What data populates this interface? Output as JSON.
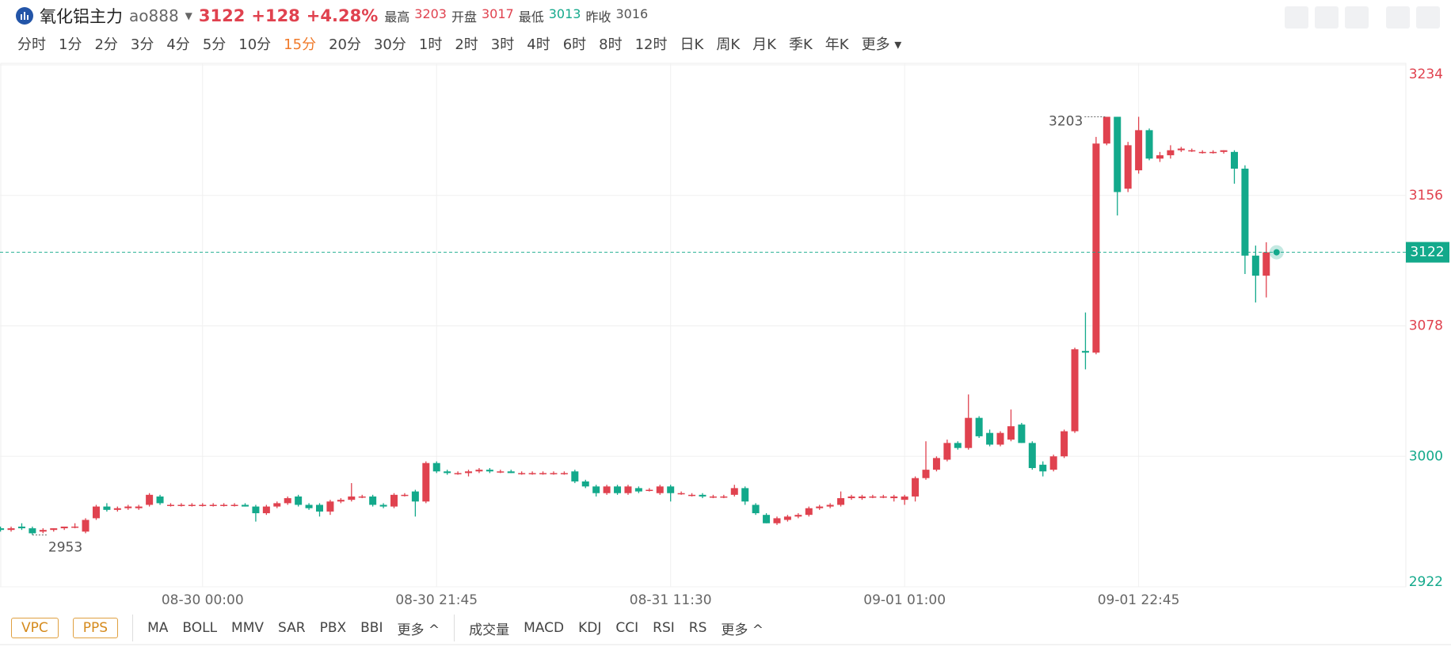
{
  "header": {
    "title": "氧化铝主力",
    "symbol": "ao888",
    "price": "3122",
    "change": "+128",
    "change_pct": "+4.28%",
    "stats": [
      {
        "label": "最高",
        "value": "3203",
        "color": "#e0424f"
      },
      {
        "label": "开盘",
        "value": "3017",
        "color": "#e0424f"
      },
      {
        "label": "最低",
        "value": "3013",
        "color": "#13a98b"
      },
      {
        "label": "昨收",
        "value": "3016",
        "color": "#555"
      }
    ]
  },
  "periods": [
    "分时",
    "1分",
    "2分",
    "3分",
    "4分",
    "5分",
    "10分",
    "15分",
    "20分",
    "30分",
    "1时",
    "2时",
    "3时",
    "4时",
    "6时",
    "8时",
    "12时",
    "日K",
    "周K",
    "月K",
    "季K",
    "年K",
    "更多"
  ],
  "active_period_index": 7,
  "indicators": {
    "main_boxes": [
      "VPC",
      "PPS"
    ],
    "main": [
      "MA",
      "BOLL",
      "MMV",
      "SAR",
      "PBX",
      "BBI"
    ],
    "main_more": "更多",
    "sub": [
      "成交量",
      "MACD",
      "KDJ",
      "CCI",
      "RSI",
      "RS"
    ],
    "sub_more": "更多"
  },
  "chart_data": {
    "type": "candlestick",
    "up_color": "#e0424f",
    "down_color": "#13a98b",
    "grid": true,
    "ylim": [
      2922,
      3234
    ],
    "yticks": [
      2922,
      3000,
      3078,
      3156,
      3234
    ],
    "prev_close": 3016,
    "current_price": 3122,
    "extremes": {
      "high": 3203,
      "low": 2953
    },
    "categories": [
      null,
      null,
      null,
      null,
      null,
      null,
      null,
      null,
      null,
      null,
      null,
      null,
      null,
      null,
      null,
      null,
      null,
      null,
      null,
      "08-30 00:00",
      null,
      null,
      null,
      null,
      null,
      null,
      null,
      null,
      null,
      null,
      null,
      null,
      null,
      null,
      null,
      null,
      null,
      null,
      null,
      null,
      null,
      "08-30 21:45",
      null,
      null,
      null,
      null,
      null,
      null,
      null,
      null,
      null,
      null,
      null,
      null,
      null,
      null,
      null,
      null,
      null,
      null,
      null,
      null,
      null,
      "08-31 11:30",
      null,
      null,
      null,
      null,
      null,
      null,
      null,
      null,
      null,
      null,
      null,
      null,
      null,
      null,
      null,
      null,
      null,
      null,
      null,
      null,
      null,
      "09-01 01:00",
      null,
      null,
      null,
      null,
      null,
      null,
      null,
      null,
      null,
      null,
      null,
      null,
      null,
      null,
      null,
      null,
      null,
      null,
      null,
      null,
      null,
      "09-01 22:45",
      null,
      null,
      null,
      null,
      null,
      null,
      null,
      null,
      null,
      null,
      null,
      null
    ],
    "open": [
      2957,
      2956,
      2958,
      2957,
      2955,
      2956,
      2957,
      2958,
      2955,
      2963,
      2970,
      2968,
      2969,
      2969,
      2971,
      2976,
      2971,
      2971,
      2971,
      2971,
      2971,
      2971,
      2971,
      2971,
      2970,
      2966,
      2970,
      2972,
      2976,
      2971,
      2971,
      2967,
      2973,
      2974,
      2976,
      2976,
      2971,
      2970,
      2977,
      2979,
      2973,
      2996,
      2991,
      2990,
      2990,
      2991,
      2992,
      2991,
      2991,
      2990,
      2990,
      2990,
      2990,
      2990,
      2991,
      2985,
      2982,
      2978,
      2982,
      2978,
      2981,
      2980,
      2978,
      2982,
      2978,
      2977,
      2977,
      2976,
      2976,
      2977,
      2981,
      2971,
      2965,
      2960,
      2962,
      2964,
      2965,
      2969,
      2970,
      2971,
      2975,
      2975,
      2976,
      2976,
      2975,
      2974,
      2976,
      2987,
      2992,
      2998,
      3008,
      3005,
      3023,
      3014,
      3007,
      3010,
      3019,
      3008,
      2995,
      2992,
      3000,
      3015,
      3063,
      3062,
      3187,
      3203,
      3160,
      3171,
      3195,
      3178,
      3180,
      3183,
      3183,
      3182,
      3182,
      3182,
      3182,
      3172,
      3120,
      3108
    ],
    "high": [
      2958,
      2958,
      2960,
      2958,
      2957,
      2957,
      2958,
      2960,
      2963,
      2971,
      2972,
      2970,
      2971,
      2971,
      2978,
      2977,
      2972,
      2972,
      2972,
      2972,
      2972,
      2972,
      2972,
      2972,
      2971,
      2971,
      2973,
      2976,
      2977,
      2972,
      2972,
      2974,
      2975,
      2984,
      2977,
      2977,
      2972,
      2978,
      2978,
      2980,
      2997,
      2997,
      2992,
      2991,
      2992,
      2993,
      2993,
      2992,
      2992,
      2991,
      2991,
      2991,
      2991,
      2991,
      2992,
      2986,
      2983,
      2983,
      2983,
      2983,
      2982,
      2981,
      2983,
      2983,
      2979,
      2978,
      2978,
      2977,
      2977,
      2983,
      2982,
      2972,
      2966,
      2964,
      2965,
      2966,
      2970,
      2971,
      2972,
      2979,
      2977,
      2977,
      2977,
      2977,
      2977,
      2977,
      2988,
      3009,
      3000,
      3010,
      3009,
      3037,
      3024,
      3016,
      3015,
      3028,
      3020,
      3009,
      2997,
      3001,
      3016,
      3065,
      3086,
      3191,
      3203,
      3203,
      3188,
      3203,
      3196,
      3182,
      3186,
      3185,
      3184,
      3183,
      3183,
      3183,
      3183,
      3174,
      3126,
      3128
    ],
    "low": [
      2955,
      2955,
      2956,
      2953,
      2954,
      2955,
      2956,
      2957,
      2954,
      2962,
      2967,
      2967,
      2968,
      2968,
      2970,
      2971,
      2970,
      2970,
      2970,
      2970,
      2970,
      2970,
      2970,
      2970,
      2961,
      2965,
      2969,
      2971,
      2970,
      2968,
      2964,
      2965,
      2972,
      2973,
      2975,
      2970,
      2969,
      2969,
      2976,
      2964,
      2972,
      2990,
      2989,
      2989,
      2988,
      2990,
      2990,
      2990,
      2990,
      2989,
      2989,
      2989,
      2989,
      2989,
      2984,
      2981,
      2976,
      2977,
      2977,
      2977,
      2978,
      2979,
      2977,
      2973,
      2977,
      2976,
      2975,
      2975,
      2975,
      2976,
      2971,
      2965,
      2960,
      2959,
      2961,
      2963,
      2964,
      2968,
      2969,
      2970,
      2974,
      2974,
      2975,
      2975,
      2973,
      2971,
      2973,
      2986,
      2991,
      2997,
      3004,
      3004,
      3011,
      3006,
      3006,
      3009,
      3008,
      2992,
      2988,
      2991,
      2999,
      3014,
      3052,
      3061,
      3186,
      3144,
      3158,
      3169,
      3177,
      3176,
      3178,
      3182,
      3182,
      3181,
      3181,
      3181,
      3163,
      3109,
      3092,
      3095
    ],
    "close": [
      2956,
      2957,
      2957,
      2954,
      2956,
      2957,
      2958,
      2958,
      2962,
      2970,
      2968,
      2969,
      2970,
      2970,
      2977,
      2972,
      2971,
      2971,
      2971,
      2971,
      2971,
      2971,
      2971,
      2970,
      2966,
      2970,
      2972,
      2975,
      2971,
      2969,
      2967,
      2973,
      2974,
      2976,
      2976,
      2971,
      2970,
      2977,
      2977,
      2973,
      2996,
      2991,
      2990,
      2990,
      2991,
      2992,
      2991,
      2991,
      2990,
      2990,
      2990,
      2990,
      2990,
      2990,
      2985,
      2982,
      2978,
      2982,
      2978,
      2982,
      2979,
      2980,
      2982,
      2978,
      2978,
      2977,
      2976,
      2976,
      2976,
      2981,
      2973,
      2966,
      2960,
      2963,
      2964,
      2965,
      2969,
      2970,
      2971,
      2975,
      2976,
      2976,
      2976,
      2976,
      2976,
      2976,
      2987,
      2992,
      2999,
      3008,
      3005,
      3023,
      3012,
      3007,
      3014,
      3018,
      3008,
      2993,
      2991,
      3000,
      3015,
      3064,
      3062,
      3187,
      3203,
      3158,
      3186,
      3195,
      3178,
      3180,
      3183,
      3184,
      3183,
      3182,
      3182,
      3183,
      3172,
      3120,
      3108,
      3122
    ]
  }
}
